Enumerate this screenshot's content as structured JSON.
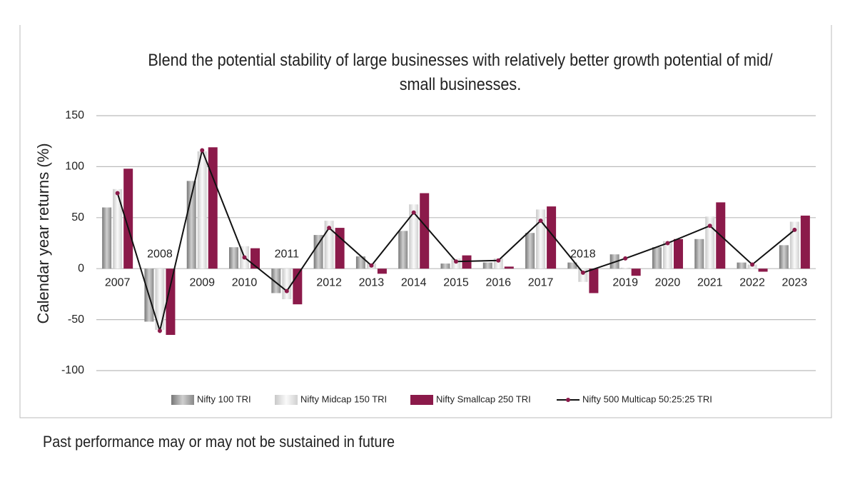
{
  "chart_data": {
    "type": "bar-line",
    "title": "Blend the potential stability of large businesses with relatively better growth potential of mid/ small businesses.",
    "y_label": "Calendar year returns (%)",
    "footnote": "Past performance may or may not be sustained in future",
    "categories": [
      "2007",
      "2008",
      "2009",
      "2010",
      "2011",
      "2012",
      "2013",
      "2014",
      "2015",
      "2016",
      "2017",
      "2018",
      "2019",
      "2020",
      "2021",
      "2022",
      "2023"
    ],
    "series": [
      {
        "name": "Nifty 100 TRI",
        "kind": "bar",
        "color": "#a0a0a0",
        "values": [
          60,
          -52,
          86,
          21,
          -24,
          33,
          12,
          37,
          5,
          6,
          35,
          6,
          14,
          21,
          29,
          6,
          23
        ]
      },
      {
        "name": "Nifty Midcap 150 TRI",
        "kind": "bar",
        "color": "#e2e2e2",
        "values": [
          78,
          -60,
          115,
          22,
          -30,
          47,
          5,
          63,
          10,
          10,
          58,
          -13,
          1,
          27,
          51,
          4,
          46
        ]
      },
      {
        "name": "Nifty Smallcap 250 TRI",
        "kind": "bar",
        "color": "#8b1a4a",
        "values": [
          98,
          -65,
          119,
          20,
          -35,
          40,
          -5,
          74,
          13,
          2,
          61,
          -24,
          -7,
          29,
          65,
          -3,
          52
        ]
      },
      {
        "name": "Nifty 500 Multicap 50:25:25 TRI",
        "kind": "line",
        "color": "#111111",
        "marker_color": "#8b1a4a",
        "values": [
          74,
          -61,
          116,
          11,
          -22,
          40,
          3,
          55,
          7,
          8,
          47,
          -4,
          10,
          25,
          42,
          4,
          38
        ]
      }
    ],
    "ylim": [
      -100,
      150
    ],
    "yticks": [
      -100,
      -50,
      0,
      50,
      100,
      150
    ],
    "grid": true
  }
}
